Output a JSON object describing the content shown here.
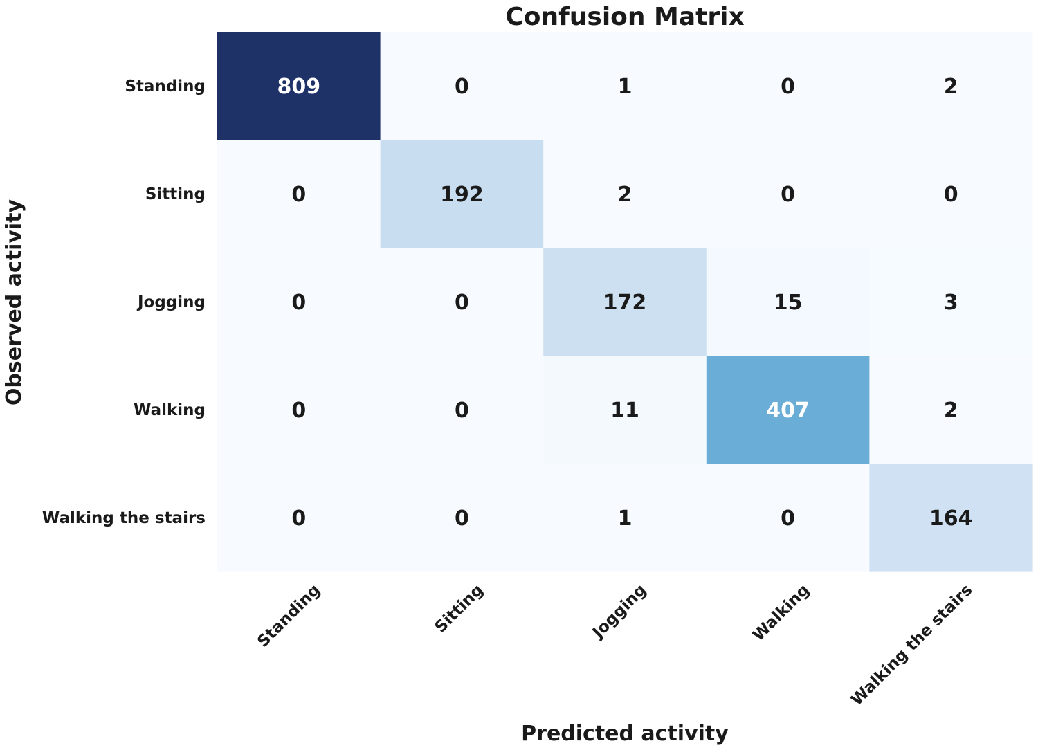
{
  "chart_data": {
    "type": "heatmap",
    "title": "Confusion Matrix",
    "xlabel": "Predicted activity",
    "ylabel": "Observed activity",
    "x_categories": [
      "Standing",
      "Sitting",
      "Jogging",
      "Walking",
      "Walking the stairs"
    ],
    "y_categories": [
      "Standing",
      "Sitting",
      "Jogging",
      "Walking",
      "Walking the stairs"
    ],
    "values": [
      [
        809,
        0,
        1,
        0,
        2
      ],
      [
        0,
        192,
        2,
        0,
        0
      ],
      [
        0,
        0,
        172,
        15,
        3
      ],
      [
        0,
        0,
        11,
        407,
        2
      ],
      [
        0,
        0,
        1,
        0,
        164
      ]
    ],
    "colormap": "Blues",
    "colors": {
      "low": "#f7fbff",
      "light": "#cfe1f1",
      "mid": "#6baed6",
      "high": "#1f3268",
      "text_dark": "#1a1a1a",
      "text_light": "#ffffff"
    },
    "colorbar": false
  }
}
